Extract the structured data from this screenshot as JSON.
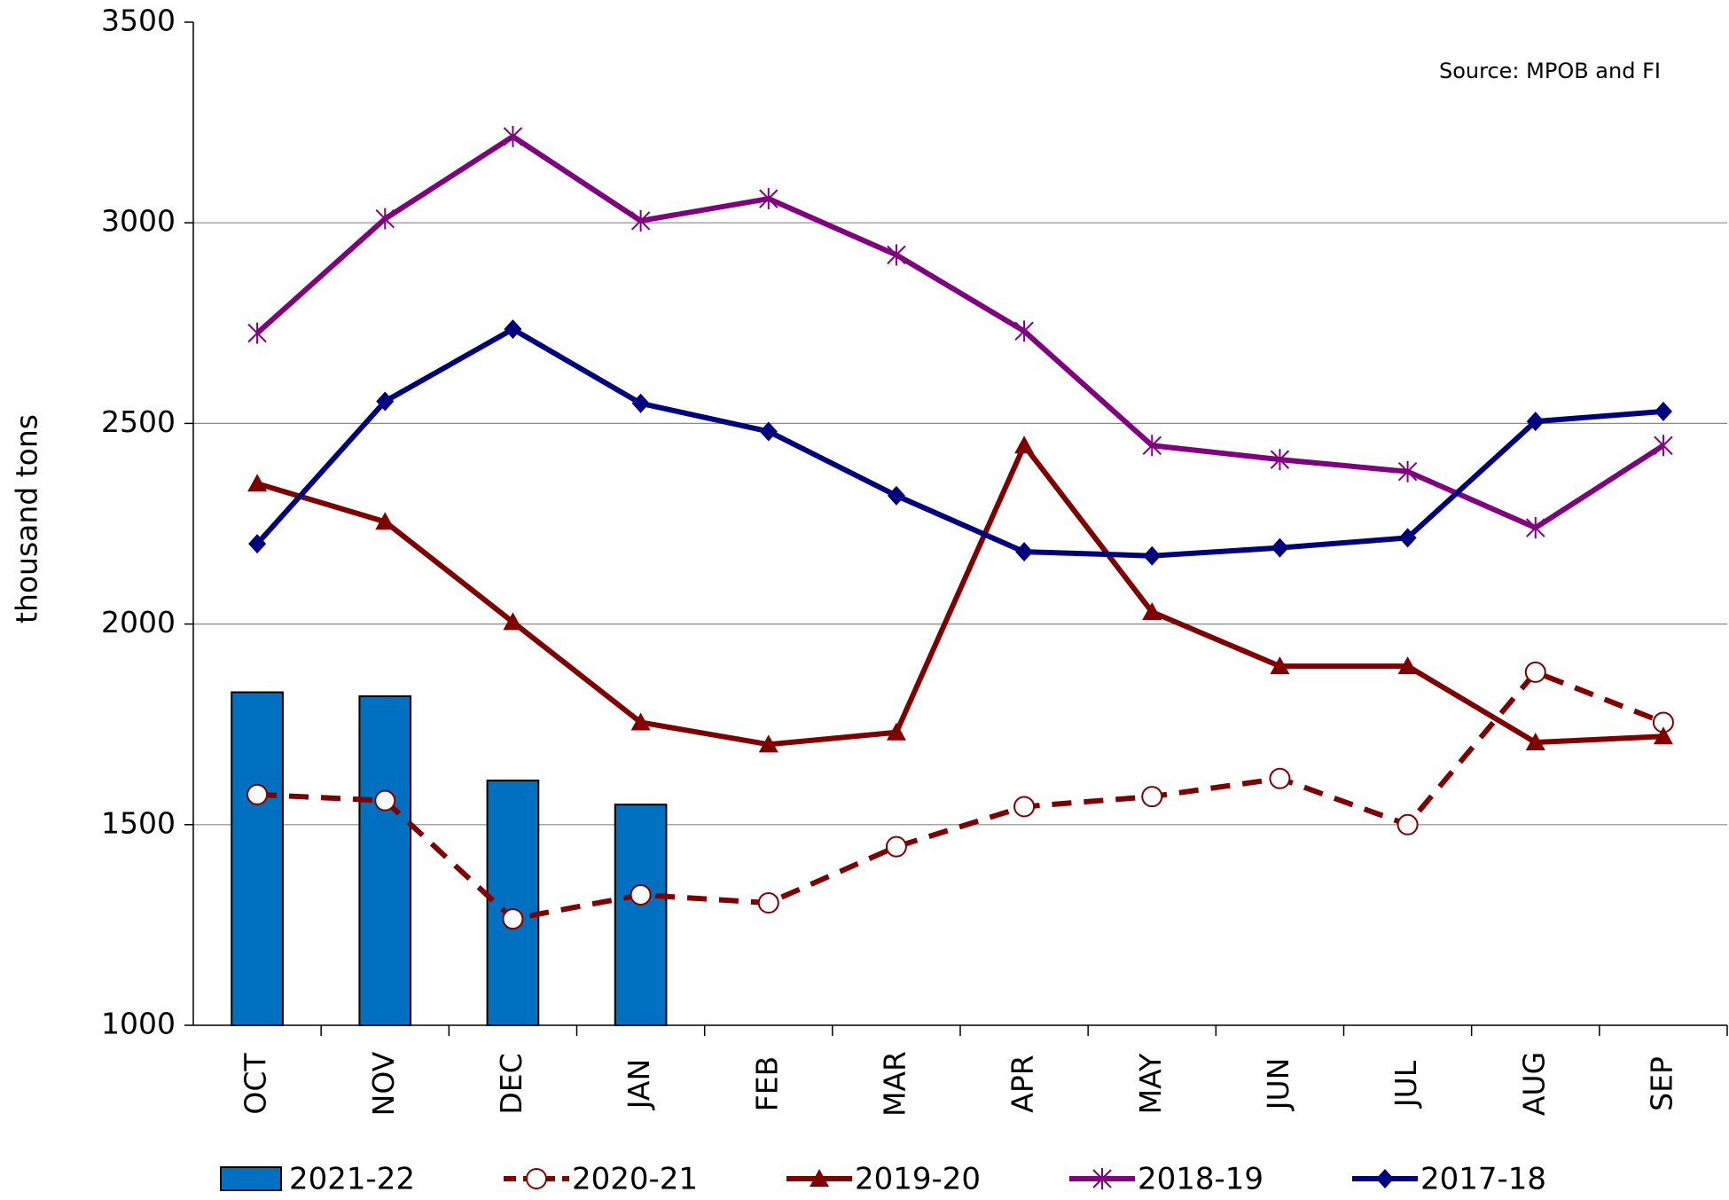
{
  "chart_data": {
    "type": "bar",
    "y_label": "thousand tons",
    "annotation": "Source: MPOB and FI",
    "categories": [
      "OCT",
      "NOV",
      "DEC",
      "JAN",
      "FEB",
      "MAR",
      "APR",
      "MAY",
      "JUN",
      "JUL",
      "AUG",
      "SEP"
    ],
    "ylim": [
      1000,
      3500
    ],
    "yticks": [
      1000,
      1500,
      2000,
      2500,
      3000,
      3500
    ],
    "grid": true,
    "legend": "bottom",
    "series": [
      {
        "name": "2021-22",
        "type": "bar",
        "color": "#0070c0",
        "values": [
          1830,
          1820,
          1610,
          1550,
          null,
          null,
          null,
          null,
          null,
          null,
          null,
          null
        ]
      },
      {
        "name": "2020-21",
        "type": "line",
        "dash": true,
        "marker": "circle",
        "color": "#800000",
        "values": [
          1575,
          1560,
          1265,
          1325,
          1305,
          1445,
          1545,
          1570,
          1615,
          1500,
          1880,
          1755
        ]
      },
      {
        "name": "2019-20",
        "type": "line",
        "marker": "triangle",
        "color": "#800000",
        "values": [
          2350,
          2255,
          2005,
          1755,
          1700,
          1730,
          2445,
          2030,
          1895,
          1895,
          1705,
          1720
        ]
      },
      {
        "name": "2018-19",
        "type": "line",
        "marker": "star",
        "color": "#800080",
        "values": [
          2725,
          3010,
          3215,
          3005,
          3060,
          2920,
          2730,
          2445,
          2410,
          2380,
          2240,
          2445
        ]
      },
      {
        "name": "2017-18",
        "type": "line",
        "marker": "diamond",
        "color": "#000080",
        "values": [
          2200,
          2555,
          2735,
          2550,
          2480,
          2320,
          2180,
          2170,
          2190,
          2215,
          2505,
          2530
        ]
      }
    ]
  }
}
